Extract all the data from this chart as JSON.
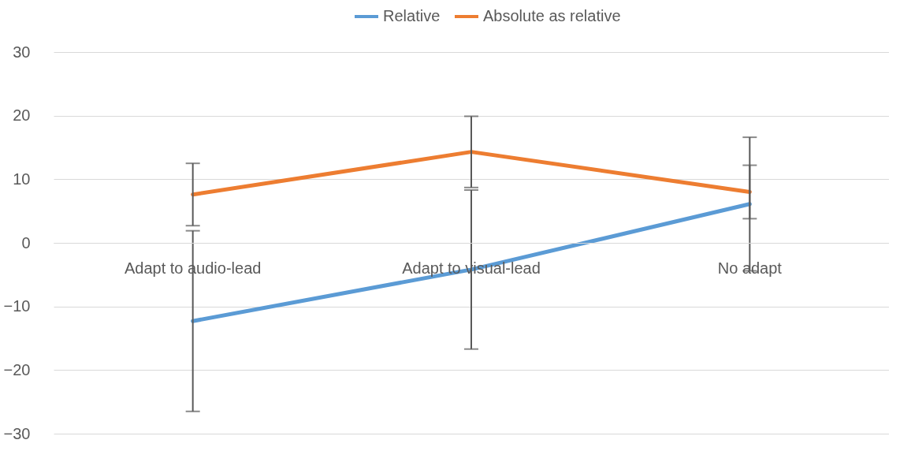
{
  "chart_data": {
    "type": "line",
    "categories": [
      "Adapt to audio-lead",
      "Adapt to visual-lead",
      "No adapt"
    ],
    "series": [
      {
        "name": "Relative",
        "color": "#5b9bd5",
        "values": [
          -12.3,
          -4.2,
          6.1
        ],
        "errors": [
          14.2,
          12.5,
          10.5
        ]
      },
      {
        "name": "Absolute as relative",
        "color": "#ed7d31",
        "values": [
          7.6,
          14.3,
          8.0
        ],
        "errors": [
          4.9,
          5.6,
          4.2
        ]
      }
    ],
    "ylim": [
      -30,
      30
    ],
    "yticks": [
      -30,
      -20,
      -10,
      0,
      10,
      20,
      30
    ],
    "grid": "y",
    "legend": "top",
    "marker": "none",
    "line_style": "solid"
  }
}
